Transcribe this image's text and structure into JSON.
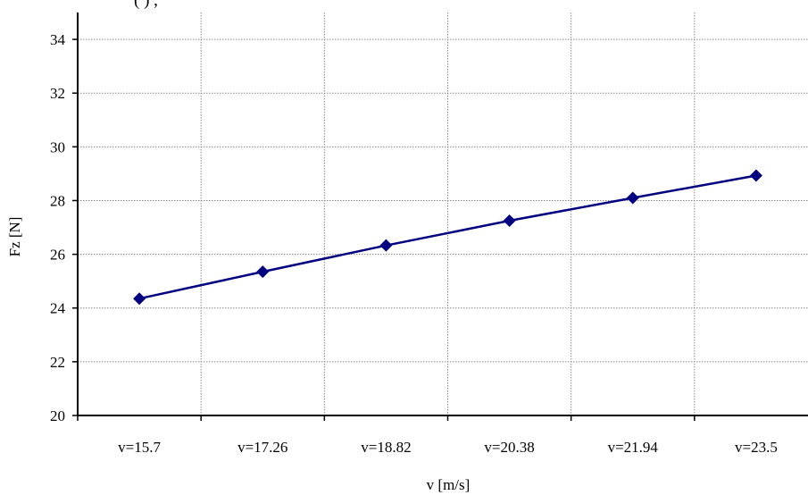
{
  "chart_data": {
    "type": "line",
    "title": "",
    "title_fragment": "(     )   ,",
    "xlabel": "v [m/s]",
    "ylabel": "Fz [N]",
    "categories": [
      "v=15.7",
      "v=17.26",
      "v=18.82",
      "v=20.38",
      "v=21.94",
      "v=23.5"
    ],
    "ylim": [
      20,
      35
    ],
    "yticks": [
      20,
      22,
      24,
      26,
      28,
      30,
      32,
      34
    ],
    "ytick_labels": [
      "20",
      "22",
      "24",
      "26",
      "28",
      "30",
      "32",
      "34"
    ],
    "grid": true,
    "legend": "none",
    "series": [
      {
        "values": [
          24.35,
          25.35,
          26.33,
          27.25,
          28.1,
          28.93
        ],
        "color": "#000080",
        "marker": "diamond"
      }
    ]
  }
}
